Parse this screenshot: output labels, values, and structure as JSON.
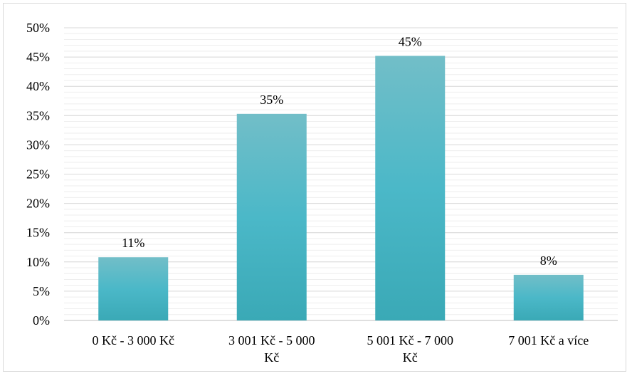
{
  "chart_data": {
    "type": "bar",
    "title": "",
    "xlabel": "",
    "ylabel": "",
    "categories": [
      [
        "0 Kč - 3 000 Kč"
      ],
      [
        "3 001 Kč - 5 000",
        "Kč"
      ],
      [
        "5 001 Kč - 7 000",
        "Kč"
      ],
      [
        "7 001 Kč a více"
      ]
    ],
    "values": [
      0.108,
      0.353,
      0.452,
      0.078
    ],
    "data_labels": [
      "11%",
      "35%",
      "45%",
      "8%"
    ],
    "ylim": [
      0,
      0.5
    ],
    "y_ticks": [
      0,
      0.05,
      0.1,
      0.15,
      0.2,
      0.25,
      0.3,
      0.35,
      0.4,
      0.45,
      0.5
    ],
    "y_tick_labels": [
      "0%",
      "5%",
      "10%",
      "15%",
      "20%",
      "25%",
      "30%",
      "35%",
      "40%",
      "45%",
      "50%"
    ],
    "grid": true,
    "minor_grid": true,
    "legend": "none",
    "colors": {
      "bar_top": "#72bec8",
      "bar_mid": "#4bb8c8",
      "bar_bottom": "#3aa9b6",
      "grid_major": "#d9d9d9",
      "grid_minor": "#eeeeee",
      "axis": "#bfbfbf"
    }
  }
}
